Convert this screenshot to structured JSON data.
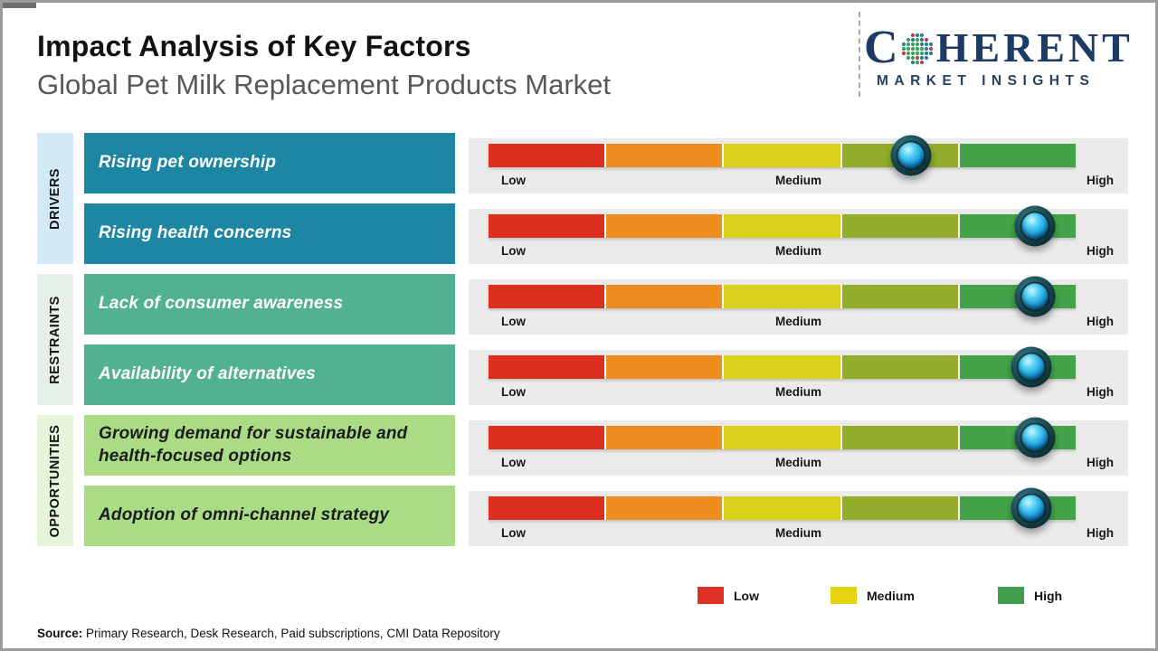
{
  "header": {
    "title": "Impact Analysis of Key Factors",
    "subtitle": "Global Pet Milk Replacement Products Market"
  },
  "logo": {
    "brand_prefix": "C",
    "brand_suffix": "HERENT",
    "tagline": "MARKET INSIGHTS",
    "brand_color": "#1e3a66"
  },
  "scale": {
    "low": "Low",
    "medium": "Medium",
    "high": "High"
  },
  "scale_colors": [
    "#dd2f1e",
    "#ee8c1f",
    "#ddd01b",
    "#93ad2b",
    "#43a348"
  ],
  "sections": [
    {
      "label": "DRIVERS",
      "strip_color": "#d3e9f5",
      "box_color": "#1d87a3",
      "rows": [
        {
          "label": "Rising pet ownership",
          "marker_percent": 72
        },
        {
          "label": "Rising health concerns",
          "marker_percent": 93
        }
      ]
    },
    {
      "label": "RESTRAINTS",
      "strip_color": "#e6efe8",
      "box_color": "#52b290",
      "rows": [
        {
          "label": "Lack of consumer awareness",
          "marker_percent": 93
        },
        {
          "label": "Availability of alternatives",
          "marker_percent": 92.5
        }
      ]
    },
    {
      "label": "OPPORTUNITIES",
      "strip_color": "#e7f5da",
      "box_color": "#a9dc85",
      "rows": [
        {
          "label": "Growing demand for sustainable and health-focused options",
          "marker_percent": 93
        },
        {
          "label": "Adoption of omni-channel strategy",
          "marker_percent": 92.5
        }
      ]
    }
  ],
  "legend": {
    "items": [
      {
        "label": "Low",
        "color": "#df3123"
      },
      {
        "label": "Medium",
        "color": "#e6d40e"
      },
      {
        "label": "High",
        "color": "#3f9e4d"
      }
    ]
  },
  "source": {
    "label": "Source:",
    "text": " Primary Research, Desk Research, Paid subscriptions, CMI Data Repository"
  },
  "chart_data": {
    "type": "bar",
    "title": "Impact Analysis of Key Factors",
    "subtitle": "Global Pet Milk Replacement Products Market",
    "categories": [
      "Rising pet ownership",
      "Rising health concerns",
      "Lack of consumer awareness",
      "Availability of alternatives",
      "Growing demand for sustainable and health-focused options",
      "Adoption of omni-channel strategy"
    ],
    "groups": [
      "Drivers",
      "Drivers",
      "Restraints",
      "Restraints",
      "Opportunities",
      "Opportunities"
    ],
    "values_percent_of_scale": [
      72,
      93,
      93,
      92.5,
      93,
      92.5
    ],
    "impact_level": [
      "Medium-High",
      "High",
      "High",
      "High",
      "High",
      "High"
    ],
    "scale_ticks": [
      "Low",
      "Medium",
      "High"
    ],
    "segment_colors": [
      "#dd2f1e",
      "#ee8c1f",
      "#ddd01b",
      "#93ad2b",
      "#43a348"
    ],
    "legend": [
      "Low",
      "Medium",
      "High"
    ],
    "legend_position": "bottom"
  }
}
